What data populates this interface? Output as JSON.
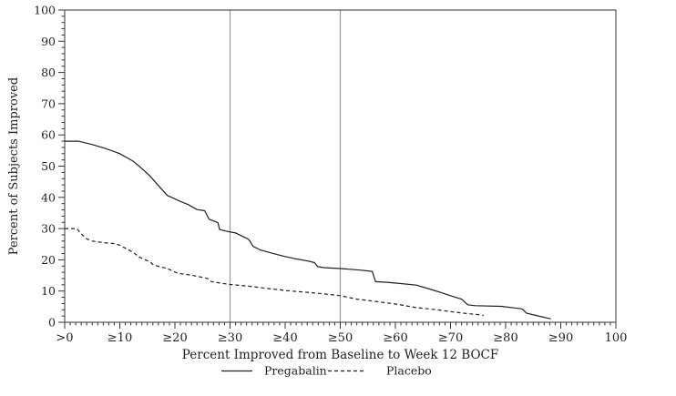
{
  "chart_data": {
    "type": "line",
    "title": "",
    "xlabel": "Percent Improved from Baseline to Week 12 BOCF",
    "ylabel": "Percent of Subjects Improved",
    "xlim": [
      0,
      100
    ],
    "ylim": [
      0,
      100
    ],
    "x_tick_values": [
      0,
      10,
      20,
      30,
      40,
      50,
      60,
      70,
      80,
      90,
      100
    ],
    "x_tick_labels": [
      ">0",
      "≥10",
      "≥20",
      "≥30",
      "≥40",
      "≥50",
      "≥60",
      "≥70",
      "≥80",
      "≥90",
      "100"
    ],
    "y_tick_values": [
      0,
      10,
      20,
      30,
      40,
      50,
      60,
      70,
      80,
      90,
      100
    ],
    "y_tick_labels": [
      "0",
      "10",
      "20",
      "30",
      "40",
      "50",
      "60",
      "70",
      "80",
      "90",
      "100"
    ],
    "x_minor_tick_step": 1,
    "y_minor_tick_step": 2,
    "grid": false,
    "legend_position": "bottom",
    "reference_lines_x": [
      30,
      50
    ],
    "series": [
      {
        "name": "Pregabalin",
        "line_style": "solid",
        "points": [
          [
            0,
            58
          ],
          [
            2.5,
            58
          ],
          [
            5,
            56.9
          ],
          [
            7.5,
            55.6
          ],
          [
            10,
            54
          ],
          [
            11.5,
            52.5
          ],
          [
            12.5,
            51.5
          ],
          [
            13.5,
            50
          ],
          [
            14.4,
            48.6
          ],
          [
            15.5,
            46.8
          ],
          [
            16.4,
            45
          ],
          [
            17.5,
            42.8
          ],
          [
            18.6,
            40.6
          ],
          [
            19.5,
            39.9
          ],
          [
            21,
            38.7
          ],
          [
            22.4,
            37.7
          ],
          [
            24,
            36.1
          ],
          [
            25.4,
            35.7
          ],
          [
            26.2,
            33
          ],
          [
            27.8,
            31.9
          ],
          [
            28.1,
            29.7
          ],
          [
            29.5,
            29.1
          ],
          [
            31,
            28.6
          ],
          [
            32.9,
            27
          ],
          [
            33.4,
            26.5
          ],
          [
            34.2,
            24.3
          ],
          [
            35.4,
            23.2
          ],
          [
            37.5,
            22.2
          ],
          [
            39.8,
            21.1
          ],
          [
            42,
            20.3
          ],
          [
            44.2,
            19.6
          ],
          [
            45.3,
            19.1
          ],
          [
            45.9,
            17.8
          ],
          [
            47,
            17.5
          ],
          [
            50,
            17.2
          ],
          [
            53.6,
            16.7
          ],
          [
            55.8,
            16.3
          ],
          [
            56.4,
            13
          ],
          [
            58.5,
            12.8
          ],
          [
            61,
            12.4
          ],
          [
            63.8,
            11.9
          ],
          [
            66.5,
            10.5
          ],
          [
            68.5,
            9.4
          ],
          [
            70.9,
            8
          ],
          [
            72,
            7.4
          ],
          [
            73.1,
            5.6
          ],
          [
            74.5,
            5.3
          ],
          [
            79.2,
            5.1
          ],
          [
            81.5,
            4.6
          ],
          [
            83,
            4.3
          ],
          [
            83.8,
            2.9
          ],
          [
            85.5,
            2.2
          ],
          [
            87.4,
            1.4
          ],
          [
            88.2,
            1.1
          ]
        ]
      },
      {
        "name": "Placebo",
        "line_style": "dashed",
        "points": [
          [
            0,
            30
          ],
          [
            2.2,
            30
          ],
          [
            3,
            28.3
          ],
          [
            4,
            26.7
          ],
          [
            5,
            26
          ],
          [
            7,
            25.5
          ],
          [
            9,
            25.2
          ],
          [
            10,
            24.7
          ],
          [
            11,
            23.7
          ],
          [
            12,
            22.8
          ],
          [
            12.8,
            21.9
          ],
          [
            13.4,
            21
          ],
          [
            14.4,
            20.2
          ],
          [
            15.5,
            19.3
          ],
          [
            16,
            18.5
          ],
          [
            17,
            17.9
          ],
          [
            18.5,
            17.3
          ],
          [
            20.5,
            15.7
          ],
          [
            23.3,
            15
          ],
          [
            25.5,
            14.2
          ],
          [
            26.1,
            13.9
          ],
          [
            26.6,
            13
          ],
          [
            27.7,
            12.7
          ],
          [
            30,
            12.1
          ],
          [
            33.2,
            11.6
          ],
          [
            37,
            10.8
          ],
          [
            40.5,
            10.1
          ],
          [
            44,
            9.6
          ],
          [
            47,
            9.1
          ],
          [
            50,
            8.5
          ],
          [
            53,
            7.4
          ],
          [
            55,
            7
          ],
          [
            58,
            6.3
          ],
          [
            60.5,
            5.7
          ],
          [
            63.7,
            4.7
          ],
          [
            66,
            4.3
          ],
          [
            68,
            3.9
          ],
          [
            70,
            3.4
          ],
          [
            72.5,
            2.9
          ],
          [
            74.7,
            2.5
          ],
          [
            76,
            2.2
          ]
        ]
      }
    ],
    "legend_entries": [
      "Pregabalin",
      "Placebo"
    ],
    "colors": {
      "curve": "#1f1f1f",
      "frame": "#333333",
      "reference_line": "#999999",
      "text": "#1f1f1f",
      "background": "#ffffff"
    }
  }
}
